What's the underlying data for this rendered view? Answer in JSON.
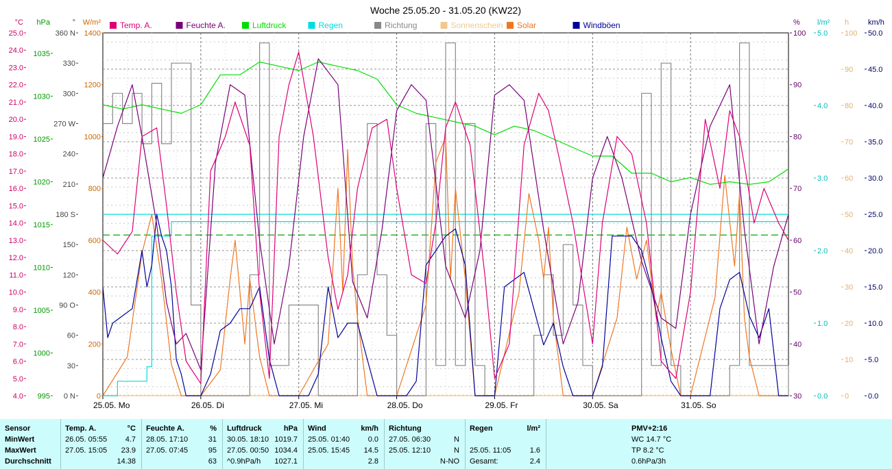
{
  "title": "Woche 25.05.20 - 31.05.20 (KW22)",
  "axes": {
    "temp": {
      "unit": "°C",
      "color": "#cc0066",
      "ticks": [
        "25.0",
        "24.0",
        "23.0",
        "22.0",
        "21.0",
        "20.0",
        "19.0",
        "18.0",
        "17.0",
        "16.0",
        "15.0",
        "14.0",
        "13.0",
        "12.0",
        "11.0",
        "10.0",
        "9.0",
        "8.0",
        "7.0",
        "6.0",
        "5.0",
        "4.0"
      ]
    },
    "press": {
      "unit": "hPa",
      "color": "#009900",
      "ticks": [
        "1035",
        "1030",
        "1025",
        "1020",
        "1015",
        "1010",
        "1005",
        "1000",
        "995"
      ]
    },
    "dir": {
      "unit": "°",
      "color": "#444444",
      "ticks": [
        "360 N",
        "330",
        "300",
        "270 W",
        "240",
        "210",
        "180 S",
        "150",
        "120",
        "90 O",
        "60",
        "30",
        "0 N"
      ]
    },
    "solar": {
      "unit": "W/m²",
      "color": "#cc6600",
      "ticks": [
        "1400",
        "1200",
        "1000",
        "800",
        "600",
        "400",
        "200",
        "0"
      ]
    },
    "hum": {
      "unit": "%",
      "color": "#660066",
      "ticks": [
        "100",
        "90",
        "80",
        "70",
        "60",
        "50",
        "40",
        "30"
      ]
    },
    "rain": {
      "unit": "l/m²",
      "color": "#00bbbb",
      "ticks": [
        "5.0",
        "4.0",
        "3.0",
        "2.0",
        "1.0",
        "0.0"
      ]
    },
    "sun": {
      "unit": "h",
      "color": "#e0b070",
      "ticks": [
        "100",
        "90",
        "80",
        "70",
        "60",
        "50",
        "40",
        "30",
        "20",
        "10",
        "0"
      ]
    },
    "wind": {
      "unit": "km/h",
      "color": "#000066",
      "ticks": [
        "50.0",
        "45.0",
        "40.0",
        "35.0",
        "30.0",
        "25.0",
        "20.0",
        "15.0",
        "10.0",
        "5.0",
        "0.0"
      ]
    }
  },
  "legend": [
    {
      "label": "Temp. A.",
      "color": "#dd0077"
    },
    {
      "label": "Feuchte A.",
      "color": "#770077"
    },
    {
      "label": "Luftdruck",
      "color": "#00dd00"
    },
    {
      "label": "Regen",
      "color": "#00dddd"
    },
    {
      "label": "Richtung",
      "color": "#888888"
    },
    {
      "label": "Sonnenschein",
      "color": "#f0c890"
    },
    {
      "label": "Solar",
      "color": "#ee7722"
    },
    {
      "label": "Windböen",
      "color": "#000099"
    }
  ],
  "x_ticks": [
    "25.05. Mo",
    "26.05. Di",
    "27.05. Mi",
    "28.05. Do",
    "29.05. Fr",
    "30.05. Sa",
    "31.05. So"
  ],
  "chart_data": {
    "type": "line",
    "title": "Woche 25.05.20 - 31.05.20 (KW22)",
    "x_unit": "days since 25.05.20 00:00",
    "x_range": [
      0,
      7
    ],
    "series": [
      {
        "name": "Temp. A.",
        "unit": "°C",
        "x": [
          0,
          0.15,
          0.3,
          0.4,
          0.55,
          0.65,
          0.75,
          0.85,
          1.0,
          1.1,
          1.25,
          1.35,
          1.5,
          1.6,
          1.7,
          1.8,
          1.9,
          2.0,
          2.15,
          2.3,
          2.4,
          2.5,
          2.6,
          2.75,
          2.9,
          3.0,
          3.15,
          3.3,
          3.4,
          3.5,
          3.6,
          3.75,
          3.9,
          4.0,
          4.15,
          4.3,
          4.45,
          4.55,
          4.65,
          4.8,
          5.0,
          5.1,
          5.25,
          5.4,
          5.55,
          5.7,
          5.85,
          6.0,
          6.15,
          6.3,
          6.4,
          6.5,
          6.65,
          6.75,
          6.9,
          7.0
        ],
        "values": [
          13.0,
          12.2,
          13.5,
          19.0,
          19.5,
          15.0,
          10.0,
          6.0,
          4.7,
          17.0,
          19.0,
          21.0,
          18.5,
          10.0,
          5.0,
          19.0,
          22.0,
          23.9,
          19.0,
          12.0,
          9.0,
          11.0,
          16.0,
          19.5,
          20.0,
          16.0,
          11.0,
          10.5,
          14.0,
          19.5,
          21.0,
          18.5,
          11.0,
          5.0,
          7.0,
          18.5,
          21.5,
          20.5,
          18.0,
          14.0,
          7.0,
          14.0,
          19.0,
          18.0,
          14.0,
          6.0,
          5.0,
          10.0,
          20.0,
          16.0,
          20.5,
          19.0,
          14.0,
          16.0,
          14.0,
          13.0
        ]
      },
      {
        "name": "Feuchte A.",
        "unit": "%",
        "x": [
          0,
          0.15,
          0.3,
          0.4,
          0.55,
          0.65,
          0.75,
          0.85,
          1.0,
          1.15,
          1.3,
          1.45,
          1.6,
          1.75,
          1.9,
          2.05,
          2.2,
          2.4,
          2.55,
          2.7,
          2.85,
          3.0,
          3.15,
          3.3,
          3.5,
          3.7,
          3.85,
          4.0,
          4.15,
          4.3,
          4.5,
          4.7,
          4.85,
          5.0,
          5.15,
          5.3,
          5.5,
          5.7,
          5.85,
          6.0,
          6.2,
          6.4,
          6.55,
          6.7,
          6.85,
          7.0
        ],
        "values": [
          72,
          82,
          90,
          80,
          63,
          48,
          40,
          42,
          35,
          75,
          90,
          88,
          60,
          40,
          55,
          80,
          95,
          90,
          52,
          45,
          62,
          85,
          90,
          87,
          55,
          45,
          58,
          88,
          90,
          87,
          62,
          40,
          48,
          72,
          80,
          72,
          56,
          45,
          43,
          65,
          82,
          90,
          62,
          40,
          55,
          65
        ]
      },
      {
        "name": "Luftdruck",
        "unit": "hPa",
        "x": [
          0,
          0.2,
          0.4,
          0.6,
          0.8,
          1.0,
          1.2,
          1.4,
          1.6,
          1.8,
          2.0,
          2.2,
          2.4,
          2.6,
          2.8,
          3.0,
          3.2,
          3.4,
          3.6,
          3.8,
          4.0,
          4.2,
          4.4,
          4.6,
          4.8,
          5.0,
          5.2,
          5.4,
          5.6,
          5.8,
          6.0,
          6.2,
          6.4,
          6.6,
          6.8,
          7.0
        ],
        "values": [
          1029.0,
          1028.5,
          1029.0,
          1028.5,
          1028.0,
          1029.0,
          1032.5,
          1032.5,
          1034.0,
          1033.5,
          1033.0,
          1034.0,
          1033.5,
          1033.0,
          1032.0,
          1029.0,
          1028.0,
          1027.5,
          1027.0,
          1026.5,
          1025.5,
          1026.5,
          1026.0,
          1025.0,
          1024.0,
          1023.0,
          1023.0,
          1021.0,
          1021.0,
          1020.0,
          1020.5,
          1019.7,
          1020.0,
          1019.7,
          1020.0,
          1021.5
        ]
      },
      {
        "name": "Regen",
        "unit": "l/m²",
        "x": [
          0,
          0.1,
          0.15,
          0.25,
          0.35,
          0.45,
          0.5,
          0.7,
          1.0,
          3.0,
          5.0,
          7.0
        ],
        "values": [
          0.0,
          0.0,
          0.2,
          0.2,
          0.2,
          0.4,
          2.2,
          2.4,
          2.4,
          2.4,
          2.4,
          2.4
        ]
      },
      {
        "name": "Richtung",
        "unit": "°",
        "x": [
          0,
          0.1,
          0.2,
          0.3,
          0.4,
          0.5,
          0.6,
          0.7,
          0.8,
          0.9,
          1.0,
          1.1,
          1.2,
          1.3,
          1.4,
          1.5,
          1.6,
          1.7,
          1.9,
          2.2,
          2.5,
          2.6,
          2.7,
          2.8,
          2.9,
          3.0,
          3.2,
          3.3,
          3.4,
          3.5,
          3.6,
          3.7,
          3.8,
          3.9,
          4.0,
          4.2,
          4.4,
          4.5,
          4.6,
          4.7,
          4.8,
          4.9,
          5.0,
          5.2,
          5.4,
          5.5,
          5.6,
          5.7,
          5.8,
          5.9,
          6.0,
          6.2,
          6.4,
          6.5,
          6.6,
          6.8,
          7.0
        ],
        "values": [
          270,
          300,
          270,
          300,
          250,
          310,
          250,
          330,
          330,
          90,
          0,
          0,
          0,
          0,
          0,
          120,
          350,
          30,
          90,
          0,
          0,
          120,
          270,
          120,
          60,
          0,
          0,
          270,
          30,
          350,
          30,
          270,
          30,
          0,
          0,
          0,
          60,
          120,
          60,
          150,
          90,
          30,
          0,
          0,
          0,
          300,
          30,
          330,
          30,
          0,
          0,
          0,
          30,
          350,
          30,
          30,
          0
        ]
      },
      {
        "name": "Sonnenschein",
        "unit": "h",
        "x": [
          0,
          7
        ],
        "values": [
          0,
          0
        ]
      },
      {
        "name": "Solar",
        "unit": "W/m²",
        "x": [
          0,
          0.25,
          0.4,
          0.5,
          0.6,
          0.7,
          0.8,
          0.9,
          1.0,
          1.2,
          1.3,
          1.35,
          1.45,
          1.5,
          1.6,
          1.7,
          2.0,
          2.3,
          2.4,
          2.45,
          2.5,
          2.55,
          2.6,
          2.7,
          3.0,
          3.3,
          3.4,
          3.5,
          3.55,
          3.6,
          3.7,
          3.8,
          4.0,
          4.25,
          4.35,
          4.45,
          4.5,
          4.55,
          4.6,
          4.7,
          4.85,
          5.0,
          5.25,
          5.35,
          5.45,
          5.55,
          5.65,
          5.7,
          5.8,
          5.9,
          6.0,
          6.25,
          6.35,
          6.45,
          6.5,
          6.55,
          6.6,
          6.7,
          6.8,
          7.0
        ],
        "values": [
          0,
          150,
          550,
          700,
          450,
          120,
          0,
          0,
          0,
          100,
          450,
          600,
          200,
          450,
          150,
          0,
          0,
          200,
          800,
          400,
          950,
          500,
          300,
          0,
          0,
          350,
          900,
          1000,
          450,
          800,
          450,
          0,
          0,
          400,
          780,
          600,
          450,
          650,
          300,
          0,
          0,
          0,
          300,
          650,
          450,
          600,
          300,
          400,
          180,
          0,
          0,
          380,
          850,
          500,
          780,
          300,
          150,
          0,
          0,
          0
        ]
      },
      {
        "name": "Windböen",
        "unit": "km/h",
        "x": [
          0,
          0.05,
          0.1,
          0.2,
          0.3,
          0.4,
          0.45,
          0.5,
          0.55,
          0.6,
          0.65,
          0.7,
          0.75,
          0.8,
          0.85,
          0.9,
          1.0,
          1.1,
          1.2,
          1.3,
          1.4,
          1.5,
          1.6,
          1.7,
          1.8,
          1.9,
          2.0,
          2.1,
          2.2,
          2.3,
          2.4,
          2.5,
          2.6,
          2.7,
          2.8,
          2.9,
          3.0,
          3.1,
          3.2,
          3.3,
          3.4,
          3.5,
          3.6,
          3.7,
          3.8,
          3.9,
          4.0,
          4.1,
          4.2,
          4.3,
          4.4,
          4.5,
          4.6,
          4.7,
          4.8,
          4.9,
          5.0,
          5.1,
          5.2,
          5.3,
          5.4,
          5.5,
          5.6,
          5.7,
          5.8,
          5.9,
          6.0,
          6.1,
          6.2,
          6.3,
          6.4,
          6.5,
          6.6,
          6.7,
          6.8,
          6.9,
          7.0
        ],
        "values": [
          15,
          8,
          10,
          11,
          12,
          20,
          15,
          18,
          25,
          22,
          20,
          15,
          5,
          3,
          0,
          0,
          0,
          3,
          9,
          10,
          12,
          12,
          15,
          5,
          0,
          0,
          0,
          0,
          3,
          15,
          8,
          10,
          10,
          5,
          0,
          0,
          0,
          0,
          2,
          18,
          20,
          22,
          23,
          18,
          0,
          0,
          0,
          15,
          16,
          17,
          12,
          7,
          10,
          4,
          0,
          0,
          0,
          4,
          22,
          22,
          22,
          20,
          15,
          8,
          2,
          0,
          0,
          0,
          0,
          12,
          16,
          17,
          11,
          8,
          12,
          0,
          0
        ]
      }
    ],
    "reference_lines": [
      {
        "axis": "hum",
        "value": 61,
        "color": "#00aa00",
        "style": "dashed"
      },
      {
        "axis": "hum",
        "value": 65,
        "color": "#00dddd",
        "style": "solid"
      }
    ],
    "grid": true
  },
  "stats": {
    "sensor": {
      "header": "Sensor",
      "rows": [
        "MinWert",
        "MaxWert",
        "Durchschnitt"
      ]
    },
    "temp": {
      "header": "Temp. A.",
      "unit": "°C",
      "rows": [
        {
          "t": "26.05.  05:55",
          "v": "4.7"
        },
        {
          "t": "27.05.  15:05",
          "v": "23.9"
        },
        {
          "t": "",
          "v": "14.38"
        }
      ]
    },
    "hum": {
      "header": "Feuchte A.",
      "unit": "%",
      "rows": [
        {
          "t": "28.05.  17:10",
          "v": "31"
        },
        {
          "t": "27.05.  07:45",
          "v": "95"
        },
        {
          "t": "",
          "v": "63"
        }
      ]
    },
    "press": {
      "header": "Luftdruck",
      "unit": "hPa",
      "rows": [
        {
          "t": "30.05.  18:10",
          "v": "1019.7"
        },
        {
          "t": "27.05.  00:50",
          "v": "1034.4"
        },
        {
          "t": "^0.9hPa/h",
          "v": "1027.1"
        }
      ]
    },
    "wind": {
      "header": "Wind",
      "unit": "km/h",
      "rows": [
        {
          "t": "25.05.  01:40",
          "v": "0.0"
        },
        {
          "t": "25.05.  15:45",
          "v": "14.5"
        },
        {
          "t": "",
          "v": "2.8"
        }
      ]
    },
    "dir": {
      "header": "Richtung",
      "unit": "",
      "rows": [
        {
          "t": "27.05.  06:30",
          "v": "N"
        },
        {
          "t": "25.05.  12:10",
          "v": "N"
        },
        {
          "t": "",
          "v": "N-NO"
        }
      ]
    },
    "rain": {
      "header": "Regen",
      "unit": "l/m²",
      "rows": [
        {
          "t": "",
          "v": ""
        },
        {
          "t": "25.05.  11:05",
          "v": "1.6"
        },
        {
          "t": "Gesamt:",
          "v": "2.4"
        }
      ]
    },
    "pmv": {
      "header": "PMV+2:16",
      "rows": [
        "WC 14.7 °C",
        "TP 8.2 °C",
        "0.6hPa/3h"
      ]
    }
  }
}
